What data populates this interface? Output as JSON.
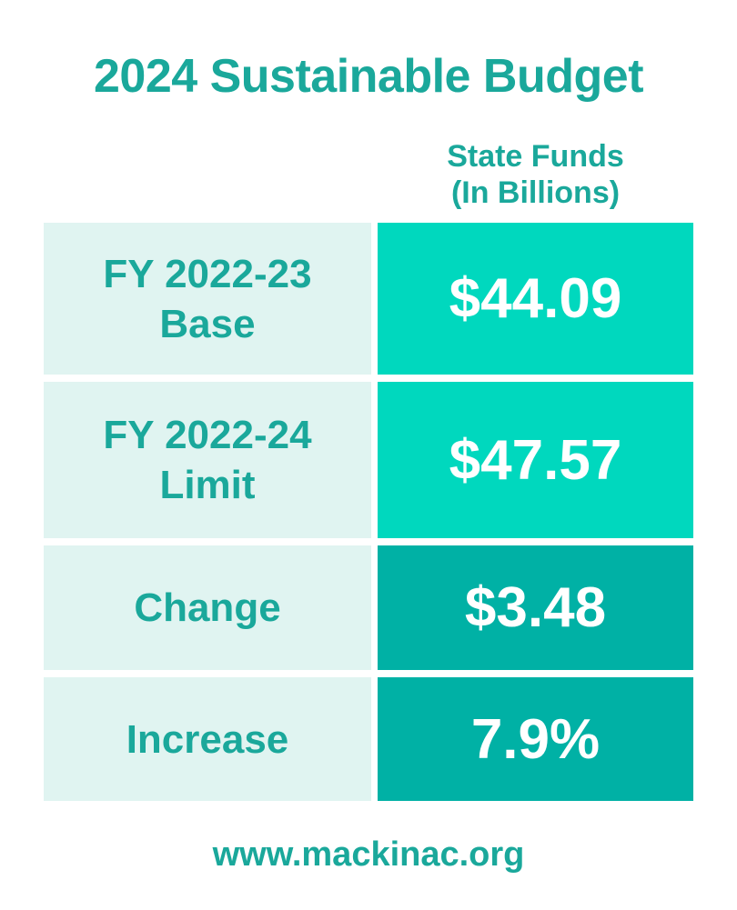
{
  "title": "2024 Sustainable Budget",
  "column_header": {
    "line1": "State Funds",
    "line2": "(In Billions)"
  },
  "table": {
    "rows": [
      {
        "label_line1": "FY 2022-23",
        "label_line2": "Base",
        "value": "$44.09"
      },
      {
        "label_line1": "FY 2022-24",
        "label_line2": "Limit",
        "value": "$47.57"
      },
      {
        "label_line1": "Change",
        "label_line2": "",
        "value": "$3.48"
      },
      {
        "label_line1": "Increase",
        "label_line2": "",
        "value": "7.9%"
      }
    ]
  },
  "footer": {
    "url": "www.mackinac.org"
  },
  "colors": {
    "teal_text": "#1aa89b",
    "label_bg": "#e0f4f1",
    "value_bg_bright": "#00d8be",
    "value_bg_dark": "#00b1a5",
    "value_text": "#ffffff",
    "page_bg": "#ffffff"
  },
  "chart_data": {
    "type": "table",
    "title": "2024 Sustainable Budget",
    "column_header": "State Funds (In Billions)",
    "rows": [
      {
        "label": "FY 2022-23 Base",
        "value_text": "$44.09",
        "value_billions": 44.09
      },
      {
        "label": "FY 2022-24 Limit",
        "value_text": "$47.57",
        "value_billions": 47.57
      },
      {
        "label": "Change",
        "value_text": "$3.48",
        "value_billions": 3.48
      },
      {
        "label": "Increase",
        "value_text": "7.9%",
        "value_percent": 7.9
      }
    ],
    "source": "www.mackinac.org",
    "legend_position": "none",
    "grid": false
  }
}
